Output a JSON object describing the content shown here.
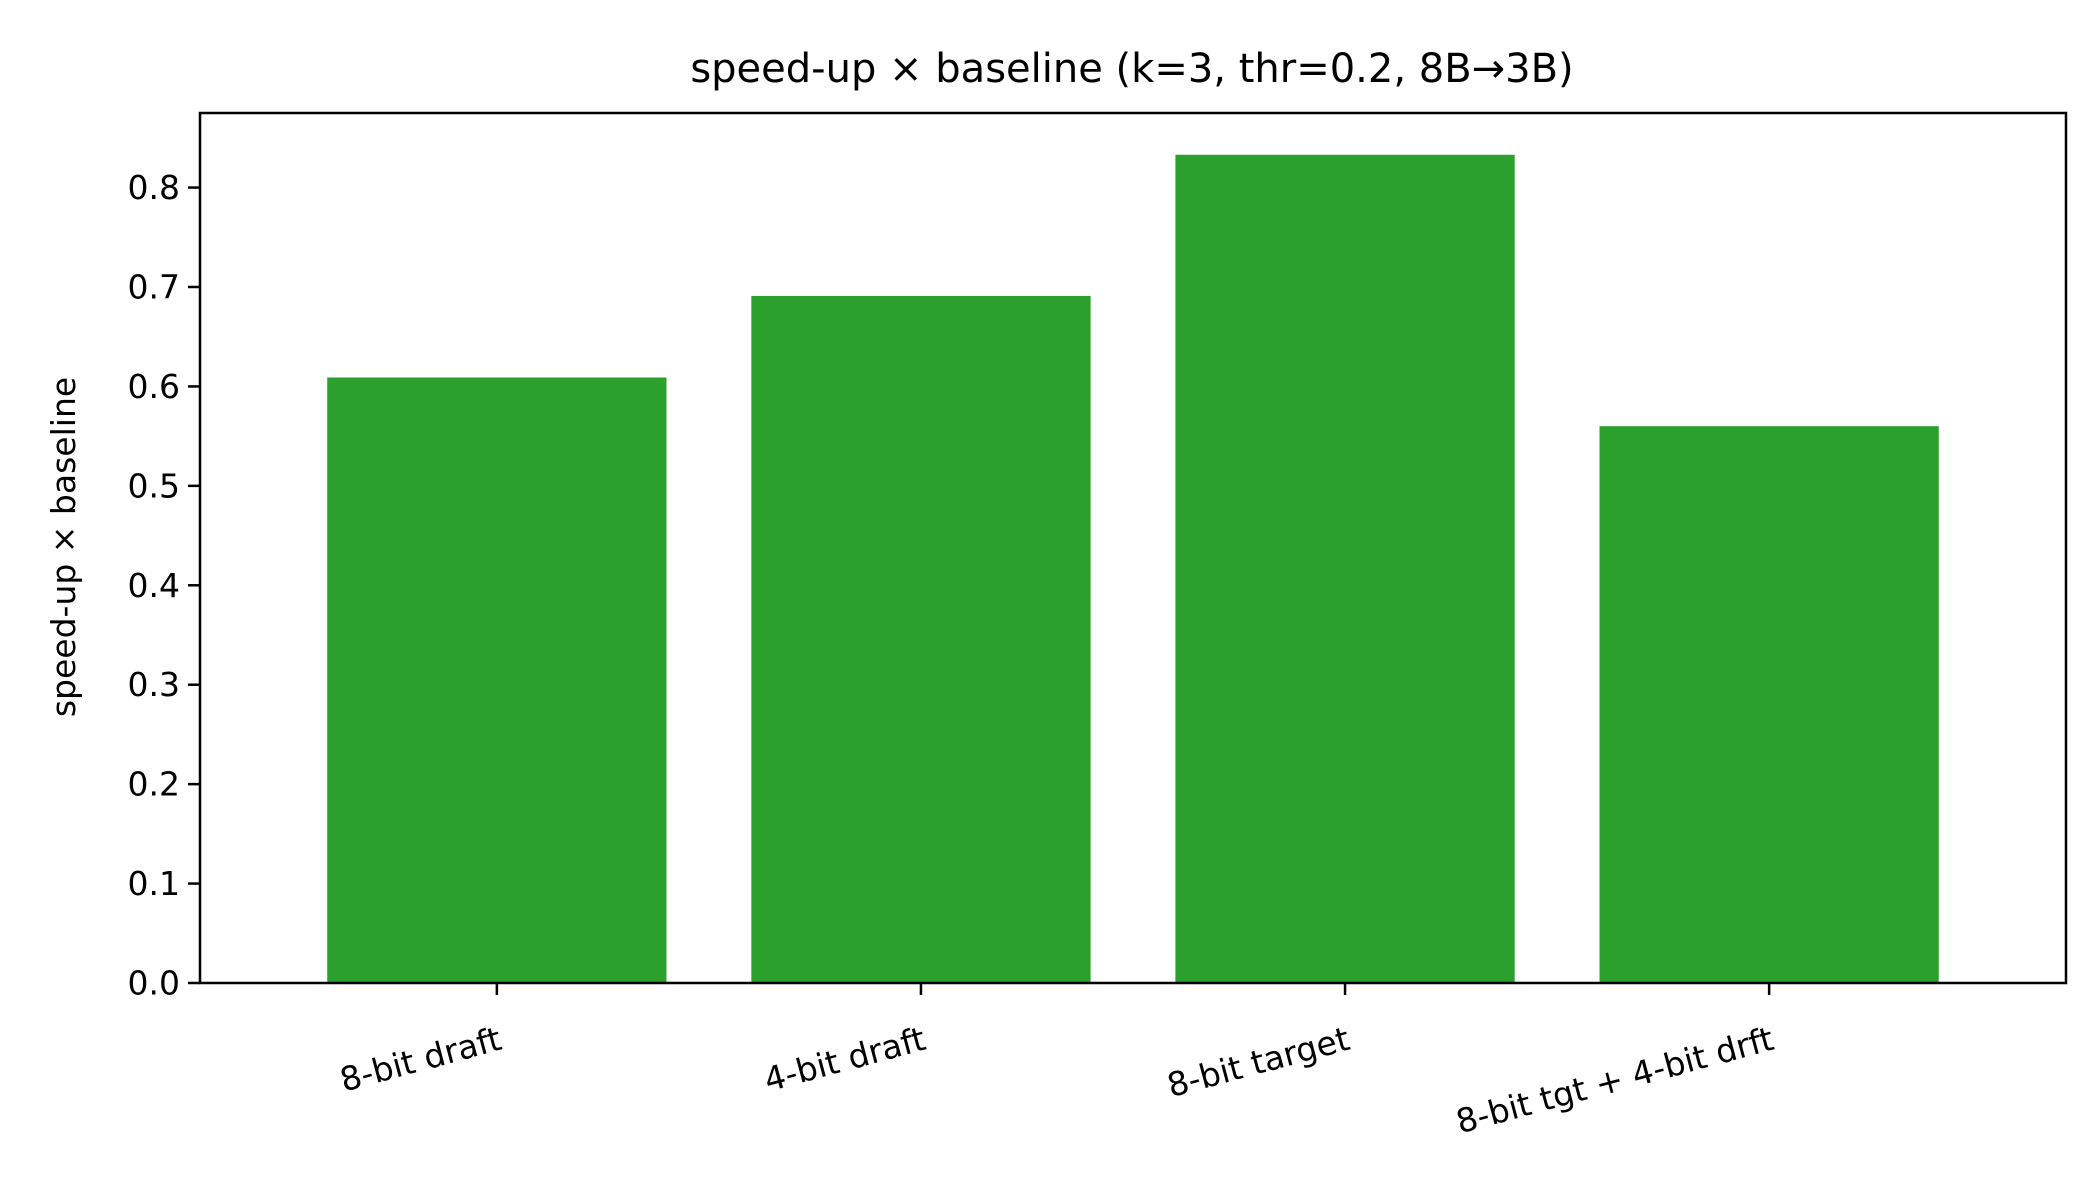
{
  "chart_data": {
    "type": "bar",
    "title": "speed-up × baseline (k=3, thr=0.2, 8B→3B)",
    "xlabel": "",
    "ylabel": "speed-up × baseline",
    "categories": [
      "8-bit draft",
      "4-bit draft",
      "8-bit target",
      "8-bit tgt + 4-bit drft"
    ],
    "values": [
      0.609,
      0.691,
      0.833,
      0.56
    ],
    "ylim": [
      0,
      0.875
    ],
    "yticks": [
      "0.0",
      "0.1",
      "0.2",
      "0.3",
      "0.4",
      "0.5",
      "0.6",
      "0.7",
      "0.8"
    ],
    "grid": false,
    "bar_color": "#2ca02c"
  }
}
